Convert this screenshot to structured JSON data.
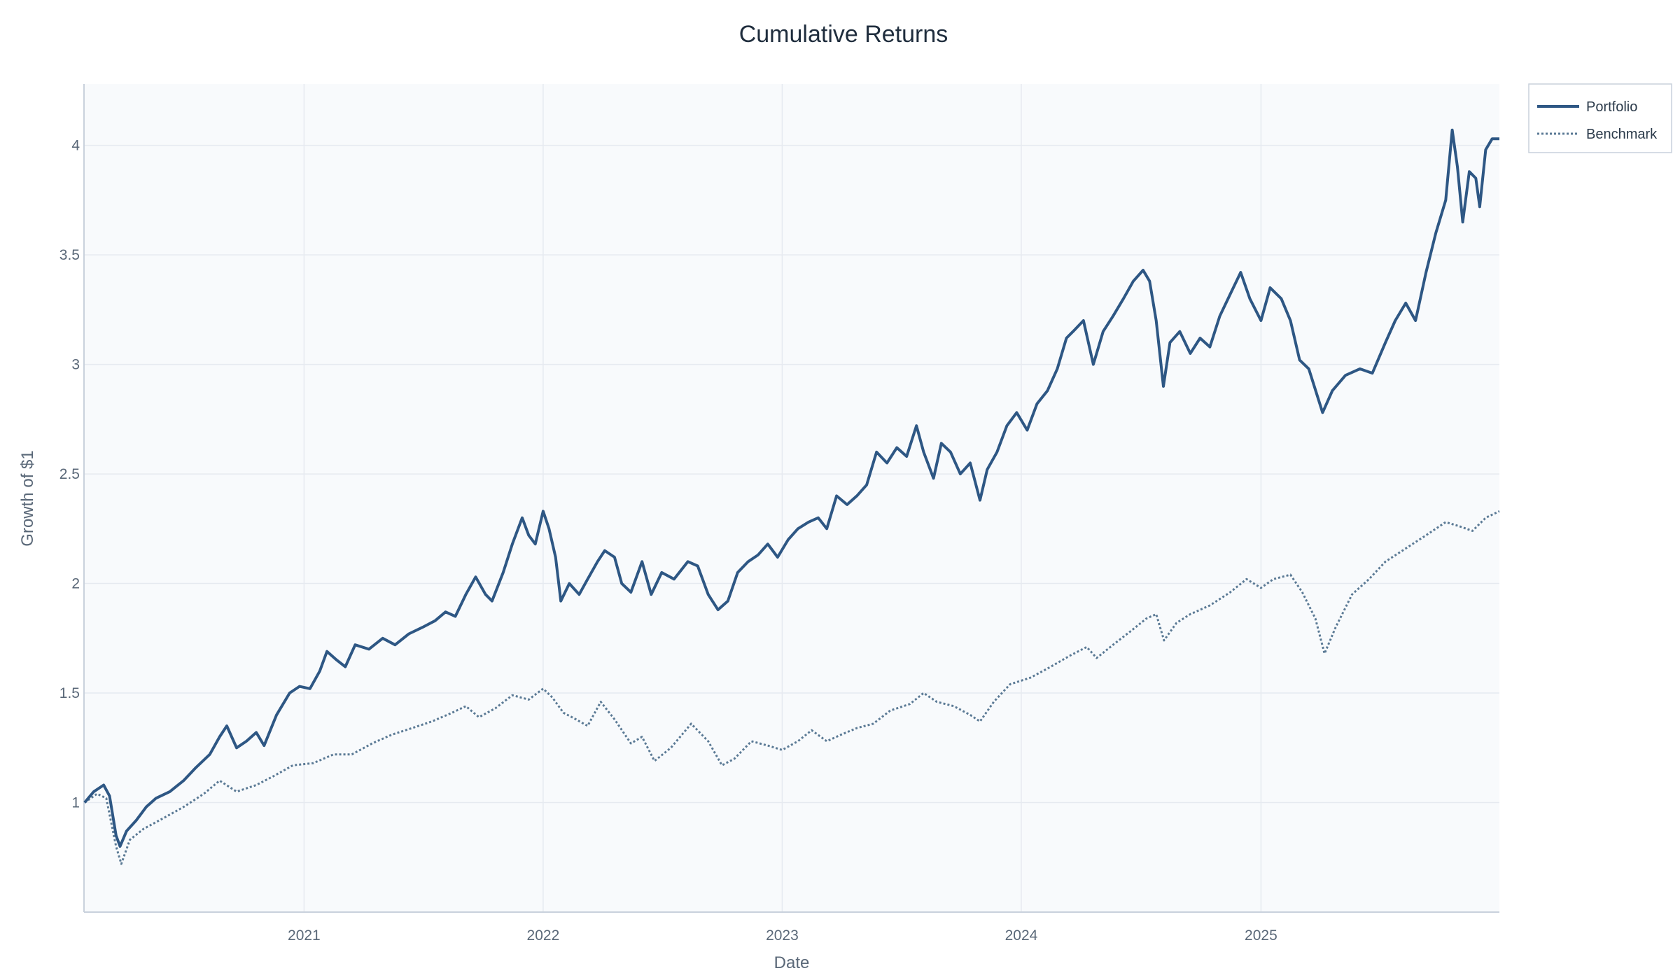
{
  "chart_data": {
    "type": "line",
    "title": "Cumulative Returns",
    "xlabel": "Date",
    "ylabel": "Growth of $1",
    "x_range": [
      "2020-01-31",
      "2025-12-31"
    ],
    "ylim": [
      0.5,
      4.28
    ],
    "x_ticks": [
      {
        "label": "2021",
        "date": "2021-01-01"
      },
      {
        "label": "2022",
        "date": "2022-01-01"
      },
      {
        "label": "2023",
        "date": "2023-01-01"
      },
      {
        "label": "2024",
        "date": "2024-01-01"
      },
      {
        "label": "2025",
        "date": "2025-01-01"
      }
    ],
    "y_ticks": [
      {
        "label": "1",
        "value": 1
      },
      {
        "label": "1.5",
        "value": 1.5
      },
      {
        "label": "2",
        "value": 2
      },
      {
        "label": "2.5",
        "value": 2.5
      },
      {
        "label": "3",
        "value": 3
      },
      {
        "label": "3.5",
        "value": 3.5
      },
      {
        "label": "4",
        "value": 4
      }
    ],
    "grid": true,
    "legend_position": "top-right-outside",
    "series": [
      {
        "name": "Portfolio",
        "color": "#2e5784",
        "style": "solid",
        "points": [
          [
            "2020-02-01",
            1.0
          ],
          [
            "2020-02-15",
            1.05
          ],
          [
            "2020-03-01",
            1.08
          ],
          [
            "2020-03-10",
            1.03
          ],
          [
            "2020-03-20",
            0.85
          ],
          [
            "2020-03-26",
            0.8
          ],
          [
            "2020-04-05",
            0.87
          ],
          [
            "2020-04-20",
            0.92
          ],
          [
            "2020-05-05",
            0.98
          ],
          [
            "2020-05-20",
            1.02
          ],
          [
            "2020-06-10",
            1.05
          ],
          [
            "2020-07-01",
            1.1
          ],
          [
            "2020-07-20",
            1.16
          ],
          [
            "2020-08-10",
            1.22
          ],
          [
            "2020-08-25",
            1.3
          ],
          [
            "2020-09-05",
            1.35
          ],
          [
            "2020-09-20",
            1.25
          ],
          [
            "2020-10-05",
            1.28
          ],
          [
            "2020-10-20",
            1.32
          ],
          [
            "2020-11-01",
            1.26
          ],
          [
            "2020-11-20",
            1.4
          ],
          [
            "2020-12-10",
            1.5
          ],
          [
            "2020-12-25",
            1.53
          ],
          [
            "2021-01-10",
            1.52
          ],
          [
            "2021-01-25",
            1.6
          ],
          [
            "2021-02-05",
            1.69
          ],
          [
            "2021-02-20",
            1.65
          ],
          [
            "2021-03-05",
            1.62
          ],
          [
            "2021-03-20",
            1.72
          ],
          [
            "2021-04-10",
            1.7
          ],
          [
            "2021-05-01",
            1.75
          ],
          [
            "2021-05-20",
            1.72
          ],
          [
            "2021-06-10",
            1.77
          ],
          [
            "2021-07-01",
            1.8
          ],
          [
            "2021-07-20",
            1.83
          ],
          [
            "2021-08-05",
            1.87
          ],
          [
            "2021-08-20",
            1.85
          ],
          [
            "2021-09-05",
            1.95
          ],
          [
            "2021-09-20",
            2.03
          ],
          [
            "2021-10-05",
            1.95
          ],
          [
            "2021-10-15",
            1.92
          ],
          [
            "2021-11-01",
            2.05
          ],
          [
            "2021-11-15",
            2.18
          ],
          [
            "2021-11-30",
            2.3
          ],
          [
            "2021-12-10",
            2.22
          ],
          [
            "2021-12-20",
            2.18
          ],
          [
            "2022-01-01",
            2.33
          ],
          [
            "2022-01-10",
            2.25
          ],
          [
            "2022-01-20",
            2.12
          ],
          [
            "2022-01-28",
            1.92
          ],
          [
            "2022-02-10",
            2.0
          ],
          [
            "2022-02-25",
            1.95
          ],
          [
            "2022-03-10",
            2.02
          ],
          [
            "2022-03-25",
            2.1
          ],
          [
            "2022-04-05",
            2.15
          ],
          [
            "2022-04-20",
            2.12
          ],
          [
            "2022-05-01",
            2.0
          ],
          [
            "2022-05-15",
            1.96
          ],
          [
            "2022-06-01",
            2.1
          ],
          [
            "2022-06-15",
            1.95
          ],
          [
            "2022-07-01",
            2.05
          ],
          [
            "2022-07-20",
            2.02
          ],
          [
            "2022-08-10",
            2.1
          ],
          [
            "2022-08-25",
            2.08
          ],
          [
            "2022-09-10",
            1.95
          ],
          [
            "2022-09-25",
            1.88
          ],
          [
            "2022-10-10",
            1.92
          ],
          [
            "2022-10-25",
            2.05
          ],
          [
            "2022-11-10",
            2.1
          ],
          [
            "2022-11-25",
            2.13
          ],
          [
            "2022-12-10",
            2.18
          ],
          [
            "2022-12-25",
            2.12
          ],
          [
            "2023-01-10",
            2.2
          ],
          [
            "2023-01-25",
            2.25
          ],
          [
            "2023-02-10",
            2.28
          ],
          [
            "2023-02-25",
            2.3
          ],
          [
            "2023-03-10",
            2.25
          ],
          [
            "2023-03-25",
            2.4
          ],
          [
            "2023-04-10",
            2.36
          ],
          [
            "2023-04-25",
            2.4
          ],
          [
            "2023-05-10",
            2.45
          ],
          [
            "2023-05-25",
            2.6
          ],
          [
            "2023-06-10",
            2.55
          ],
          [
            "2023-06-25",
            2.62
          ],
          [
            "2023-07-10",
            2.58
          ],
          [
            "2023-07-25",
            2.72
          ],
          [
            "2023-08-05",
            2.6
          ],
          [
            "2023-08-20",
            2.48
          ],
          [
            "2023-09-01",
            2.64
          ],
          [
            "2023-09-15",
            2.6
          ],
          [
            "2023-09-30",
            2.5
          ],
          [
            "2023-10-15",
            2.55
          ],
          [
            "2023-10-30",
            2.38
          ],
          [
            "2023-11-10",
            2.52
          ],
          [
            "2023-11-25",
            2.6
          ],
          [
            "2023-12-10",
            2.72
          ],
          [
            "2023-12-25",
            2.78
          ],
          [
            "2024-01-10",
            2.7
          ],
          [
            "2024-01-25",
            2.82
          ],
          [
            "2024-02-10",
            2.88
          ],
          [
            "2024-02-25",
            2.98
          ],
          [
            "2024-03-10",
            3.12
          ],
          [
            "2024-03-20",
            3.15
          ],
          [
            "2024-04-05",
            3.2
          ],
          [
            "2024-04-20",
            3.0
          ],
          [
            "2024-05-05",
            3.15
          ],
          [
            "2024-05-20",
            3.22
          ],
          [
            "2024-06-05",
            3.3
          ],
          [
            "2024-06-20",
            3.38
          ],
          [
            "2024-07-05",
            3.43
          ],
          [
            "2024-07-15",
            3.38
          ],
          [
            "2024-07-25",
            3.2
          ],
          [
            "2024-08-05",
            2.9
          ],
          [
            "2024-08-15",
            3.1
          ],
          [
            "2024-08-30",
            3.15
          ],
          [
            "2024-09-15",
            3.05
          ],
          [
            "2024-09-30",
            3.12
          ],
          [
            "2024-10-15",
            3.08
          ],
          [
            "2024-10-30",
            3.22
          ],
          [
            "2024-11-15",
            3.32
          ],
          [
            "2024-12-01",
            3.42
          ],
          [
            "2024-12-15",
            3.3
          ],
          [
            "2025-01-01",
            3.2
          ],
          [
            "2025-01-15",
            3.35
          ],
          [
            "2025-02-01",
            3.3
          ],
          [
            "2025-02-15",
            3.2
          ],
          [
            "2025-03-01",
            3.02
          ],
          [
            "2025-03-15",
            2.98
          ],
          [
            "2025-04-05",
            2.78
          ],
          [
            "2025-04-20",
            2.88
          ],
          [
            "2025-05-10",
            2.95
          ],
          [
            "2025-06-01",
            2.98
          ],
          [
            "2025-06-20",
            2.96
          ],
          [
            "2025-07-10",
            3.1
          ],
          [
            "2025-07-25",
            3.2
          ],
          [
            "2025-08-10",
            3.28
          ],
          [
            "2025-08-25",
            3.2
          ],
          [
            "2025-09-10",
            3.42
          ],
          [
            "2025-09-25",
            3.6
          ],
          [
            "2025-10-10",
            3.75
          ],
          [
            "2025-10-20",
            4.07
          ],
          [
            "2025-10-28",
            3.9
          ],
          [
            "2025-11-05",
            3.65
          ],
          [
            "2025-11-15",
            3.88
          ],
          [
            "2025-11-25",
            3.85
          ],
          [
            "2025-12-01",
            3.72
          ],
          [
            "2025-12-10",
            3.98
          ],
          [
            "2025-12-20",
            4.03
          ],
          [
            "2025-12-31",
            4.03
          ]
        ]
      },
      {
        "name": "Benchmark",
        "color": "#5b7a95",
        "style": "dotted",
        "points": [
          [
            "2020-02-01",
            1.0
          ],
          [
            "2020-02-20",
            1.04
          ],
          [
            "2020-03-05",
            1.02
          ],
          [
            "2020-03-20",
            0.8
          ],
          [
            "2020-03-28",
            0.72
          ],
          [
            "2020-04-10",
            0.83
          ],
          [
            "2020-05-01",
            0.88
          ],
          [
            "2020-06-01",
            0.93
          ],
          [
            "2020-07-01",
            0.98
          ],
          [
            "2020-08-01",
            1.04
          ],
          [
            "2020-08-25",
            1.1
          ],
          [
            "2020-09-20",
            1.05
          ],
          [
            "2020-10-20",
            1.08
          ],
          [
            "2020-11-15",
            1.12
          ],
          [
            "2020-12-15",
            1.17
          ],
          [
            "2021-01-15",
            1.18
          ],
          [
            "2021-02-15",
            1.22
          ],
          [
            "2021-03-15",
            1.22
          ],
          [
            "2021-04-15",
            1.27
          ],
          [
            "2021-05-15",
            1.31
          ],
          [
            "2021-06-15",
            1.34
          ],
          [
            "2021-07-15",
            1.37
          ],
          [
            "2021-08-15",
            1.41
          ],
          [
            "2021-09-05",
            1.44
          ],
          [
            "2021-09-25",
            1.39
          ],
          [
            "2021-10-20",
            1.43
          ],
          [
            "2021-11-15",
            1.49
          ],
          [
            "2021-12-10",
            1.47
          ],
          [
            "2022-01-01",
            1.52
          ],
          [
            "2022-01-15",
            1.48
          ],
          [
            "2022-02-01",
            1.41
          ],
          [
            "2022-02-20",
            1.38
          ],
          [
            "2022-03-10",
            1.35
          ],
          [
            "2022-03-30",
            1.46
          ],
          [
            "2022-04-20",
            1.38
          ],
          [
            "2022-05-15",
            1.27
          ],
          [
            "2022-06-01",
            1.3
          ],
          [
            "2022-06-20",
            1.19
          ],
          [
            "2022-07-15",
            1.25
          ],
          [
            "2022-08-15",
            1.36
          ],
          [
            "2022-09-10",
            1.28
          ],
          [
            "2022-10-01",
            1.17
          ],
          [
            "2022-10-20",
            1.2
          ],
          [
            "2022-11-15",
            1.28
          ],
          [
            "2022-12-10",
            1.26
          ],
          [
            "2023-01-01",
            1.24
          ],
          [
            "2023-01-25",
            1.28
          ],
          [
            "2023-02-15",
            1.33
          ],
          [
            "2023-03-10",
            1.28
          ],
          [
            "2023-04-01",
            1.31
          ],
          [
            "2023-04-25",
            1.34
          ],
          [
            "2023-05-20",
            1.36
          ],
          [
            "2023-06-15",
            1.42
          ],
          [
            "2023-07-15",
            1.45
          ],
          [
            "2023-08-05",
            1.5
          ],
          [
            "2023-08-25",
            1.46
          ],
          [
            "2023-09-20",
            1.44
          ],
          [
            "2023-10-15",
            1.4
          ],
          [
            "2023-10-30",
            1.37
          ],
          [
            "2023-11-20",
            1.46
          ],
          [
            "2023-12-15",
            1.54
          ],
          [
            "2024-01-15",
            1.57
          ],
          [
            "2024-02-15",
            1.62
          ],
          [
            "2024-03-15",
            1.67
          ],
          [
            "2024-04-10",
            1.71
          ],
          [
            "2024-04-25",
            1.66
          ],
          [
            "2024-05-20",
            1.72
          ],
          [
            "2024-06-15",
            1.78
          ],
          [
            "2024-07-10",
            1.84
          ],
          [
            "2024-07-25",
            1.86
          ],
          [
            "2024-08-06",
            1.74
          ],
          [
            "2024-08-25",
            1.82
          ],
          [
            "2024-09-15",
            1.86
          ],
          [
            "2024-10-15",
            1.9
          ],
          [
            "2024-11-15",
            1.96
          ],
          [
            "2024-12-10",
            2.02
          ],
          [
            "2025-01-01",
            1.98
          ],
          [
            "2025-01-20",
            2.02
          ],
          [
            "2025-02-15",
            2.04
          ],
          [
            "2025-03-05",
            1.96
          ],
          [
            "2025-03-25",
            1.84
          ],
          [
            "2025-04-08",
            1.68
          ],
          [
            "2025-04-25",
            1.8
          ],
          [
            "2025-05-20",
            1.95
          ],
          [
            "2025-06-15",
            2.02
          ],
          [
            "2025-07-10",
            2.1
          ],
          [
            "2025-08-10",
            2.16
          ],
          [
            "2025-09-10",
            2.22
          ],
          [
            "2025-10-10",
            2.28
          ],
          [
            "2025-11-01",
            2.26
          ],
          [
            "2025-11-20",
            2.24
          ],
          [
            "2025-12-10",
            2.3
          ],
          [
            "2025-12-31",
            2.33
          ]
        ]
      }
    ]
  }
}
